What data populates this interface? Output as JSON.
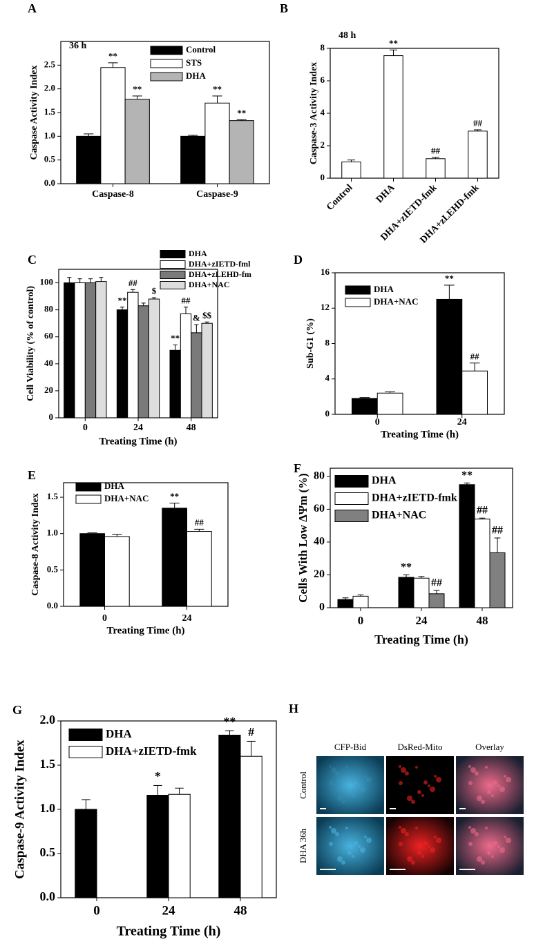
{
  "chart_data": [
    {
      "type": "bar",
      "panel_label": "A",
      "subtitle": "36 h",
      "y_label": "Caspase Activity Index",
      "categories": [
        "Caspase-8",
        "Caspase-9"
      ],
      "series": [
        {
          "name": "Control",
          "color": "#000000",
          "values": [
            1.0,
            1.0
          ],
          "errors": [
            0.05,
            0.02
          ],
          "annotations": [
            null,
            null
          ]
        },
        {
          "name": "STS",
          "color": "#ffffff",
          "values": [
            2.45,
            1.7
          ],
          "errors": [
            0.1,
            0.15
          ],
          "annotations": [
            "**",
            "**"
          ]
        },
        {
          "name": "DHA",
          "color": "#b4b4b4",
          "values": [
            1.78,
            1.33
          ],
          "errors": [
            0.07,
            0.02
          ],
          "annotations": [
            "**",
            "**"
          ]
        }
      ],
      "ylim": [
        0,
        3.0
      ],
      "yticks": [
        {
          "value": 0,
          "label": "0.0"
        },
        0.5,
        {
          "value": 1,
          "label": "1.0"
        },
        1.5,
        {
          "value": 2,
          "label": "2.0"
        },
        2.5
      ]
    },
    {
      "type": "bar",
      "panel_label": "B",
      "subtitle": "48 h",
      "y_label": "Caspase-3 Activity Index",
      "categories": [
        "Control",
        "DHA",
        "DHA+zIETD-fmk",
        "DHA+zLEHD-fmk"
      ],
      "series": [
        {
          "color": "#ffffff",
          "values": [
            1.0,
            7.55,
            1.2,
            2.9
          ],
          "errors": [
            0.12,
            0.35,
            0.08,
            0.08
          ],
          "annotations": [
            null,
            "**",
            "##",
            "##"
          ]
        }
      ],
      "ylim": [
        0,
        8
      ],
      "yticks": [
        0,
        2,
        4,
        6,
        8
      ]
    },
    {
      "type": "bar",
      "panel_label": "C",
      "y_label": "Cell Viability (% of control)",
      "x_label": "Treating Time (h)",
      "categories": [
        "0",
        "24",
        "48"
      ],
      "series": [
        {
          "name": "DHA",
          "color": "#000000",
          "values": [
            100,
            80,
            50
          ],
          "errors": [
            4,
            2,
            4
          ],
          "annotations": [
            null,
            "**",
            "**"
          ]
        },
        {
          "name": "DHA+zIETD-fml",
          "color": "#ffffff",
          "values": [
            100,
            93,
            77
          ],
          "errors": [
            3,
            2,
            5
          ],
          "annotations": [
            null,
            "##",
            "##"
          ]
        },
        {
          "name": "DHA+zLEHD-fm",
          "color": "#7a7a7a",
          "values": [
            100,
            83,
            63
          ],
          "errors": [
            3,
            2,
            6
          ],
          "annotations": [
            null,
            null,
            "&"
          ]
        },
        {
          "name": "DHA+NAC",
          "color": "#dddddd",
          "values": [
            101,
            88,
            70
          ],
          "errors": [
            3,
            1,
            1
          ],
          "annotations": [
            null,
            "$",
            "$$"
          ]
        }
      ],
      "ylim": [
        0,
        110
      ],
      "yticks": [
        0,
        20,
        40,
        60,
        80,
        100
      ]
    },
    {
      "type": "bar",
      "panel_label": "D",
      "y_label": "Sub-G1 (%)",
      "x_label": "Treating Time (h)",
      "categories": [
        "0",
        "24"
      ],
      "series": [
        {
          "name": "DHA",
          "color": "#000000",
          "values": [
            1.8,
            13
          ],
          "errors": [
            0.1,
            1.6
          ],
          "annotations": [
            null,
            "**"
          ]
        },
        {
          "name": "DHA+NAC",
          "color": "#ffffff",
          "values": [
            2.4,
            4.9
          ],
          "errors": [
            0.15,
            0.9
          ],
          "annotations": [
            null,
            "##"
          ]
        }
      ],
      "ylim": [
        0,
        16
      ],
      "yticks": [
        0,
        4,
        8,
        12,
        16
      ]
    },
    {
      "type": "bar",
      "panel_label": "E",
      "y_label": "Caspase-8 Activity Index",
      "x_label": "Treating Time (h)",
      "categories": [
        "0",
        "24"
      ],
      "series": [
        {
          "name": "DHA",
          "color": "#000000",
          "values": [
            1.0,
            1.35
          ],
          "errors": [
            0.01,
            0.07
          ],
          "annotations": [
            null,
            "**"
          ]
        },
        {
          "name": "DHA+NAC",
          "color": "#ffffff",
          "values": [
            0.96,
            1.03
          ],
          "errors": [
            0.03,
            0.03
          ],
          "annotations": [
            null,
            "##"
          ]
        }
      ],
      "ylim": [
        0,
        1.7
      ],
      "yticks": [
        {
          "value": 0,
          "label": "0.0"
        },
        0.5,
        {
          "value": 1,
          "label": "1.0"
        },
        1.5
      ]
    },
    {
      "type": "bar",
      "panel_label": "F",
      "y_label": "Cells With Low ΔΨm (%)",
      "x_label": "Treating Time (h)",
      "categories": [
        "0",
        "24",
        "48"
      ],
      "series": [
        {
          "name": "DHA",
          "color": "#000000",
          "values": [
            5,
            18.5,
            75
          ],
          "errors": [
            1,
            1.5,
            1
          ],
          "annotations": [
            null,
            "**",
            "**"
          ]
        },
        {
          "name": "DHA+zIETD-fmk",
          "color": "#ffffff",
          "values": [
            7,
            18,
            54
          ],
          "errors": [
            0.8,
            1,
            0.6
          ],
          "annotations": [
            null,
            null,
            "##"
          ]
        },
        {
          "name": "DHA+NAC",
          "color": "#808080",
          "values": [
            null,
            8.5,
            33.5
          ],
          "errors": [
            null,
            2,
            9
          ],
          "annotations": [
            null,
            "##",
            "##"
          ]
        }
      ],
      "ylim": [
        0,
        85
      ],
      "yticks": [
        0,
        20,
        40,
        60,
        80
      ]
    },
    {
      "type": "bar",
      "panel_label": "G",
      "y_label": "Caspase-9 Activity Index",
      "x_label": "Treating Time (h)",
      "categories": [
        "0",
        "24",
        "48"
      ],
      "series": [
        {
          "name": "DHA",
          "color": "#000000",
          "values": [
            1.0,
            1.16,
            1.84
          ],
          "errors": [
            0.11,
            0.11,
            0.05
          ],
          "annotations": [
            null,
            "*",
            "**"
          ]
        },
        {
          "name": "DHA+zIETD-fmk",
          "color": "#ffffff",
          "values": [
            null,
            1.17,
            1.6
          ],
          "errors": [
            null,
            0.07,
            0.17
          ],
          "annotations": [
            null,
            null,
            "#"
          ]
        }
      ],
      "ylim": [
        0,
        2.0
      ],
      "yticks": [
        {
          "value": 0,
          "label": "0.0"
        },
        0.5,
        {
          "value": 1,
          "label": "1.0"
        },
        1.5,
        {
          "value": 2,
          "label": "2.0"
        }
      ]
    }
  ],
  "panel_h": {
    "panel_label": "H",
    "columns": [
      "CFP-Bid",
      "DsRed-Mito",
      "Overlay"
    ],
    "rows": [
      "Control",
      "DHA 36h"
    ]
  }
}
